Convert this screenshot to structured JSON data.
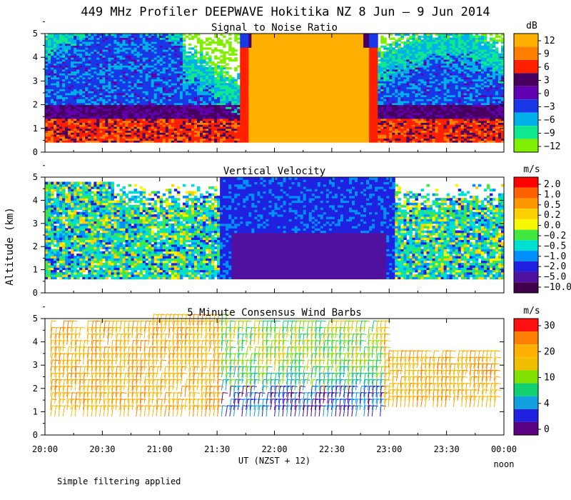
{
  "title": "449 MHz Profiler DEEPWAVE Hokitika NZ  8 Jun –  9 Jun 2014",
  "footnote": "Simple filtering applied",
  "chart_data": [
    {
      "type": "heatmap",
      "title": "Signal to Noise Ratio",
      "xlabel": "UT  (NZST + 12)",
      "ylabel": "Altitude (km)",
      "ylim": [
        0,
        5
      ],
      "yticks": [
        "0",
        "1",
        "2",
        "3",
        "4",
        "5"
      ],
      "xticks": [
        "20:00",
        "20:30",
        "21:00",
        "21:30",
        "22:00",
        "22:30",
        "23:00",
        "23:30",
        "00:00"
      ],
      "x_note": "noon",
      "colorbar": {
        "unit": "dB",
        "labels": [
          "12",
          "9",
          "6",
          "3",
          "0",
          "−3",
          "−6",
          "−9",
          "−12"
        ],
        "colors": [
          "#ffb000",
          "#ff8000",
          "#ff2000",
          "#480060",
          "#6000b0",
          "#1838e8",
          "#00b0e8",
          "#10e890",
          "#80f000"
        ]
      },
      "summary": "Low-level echo layer 0.5–2 km with strong returns (12 dB) filling 0.5–5 km between about 21:40 and 22:50 UT"
    },
    {
      "type": "heatmap",
      "title": "Vertical Velocity",
      "ylabel": "Altitude (km)",
      "ylim": [
        0,
        5
      ],
      "yticks": [
        "0",
        "1",
        "2",
        "3",
        "4",
        "5"
      ],
      "colorbar": {
        "unit": "m/s",
        "labels": [
          "2.0",
          "1.0",
          "0.5",
          "0.2",
          "0.0",
          "−0.2",
          "−0.5",
          "−1.0",
          "−2.0",
          "−5.0",
          "−10.0"
        ],
        "colors": [
          "#ff0000",
          "#ff6000",
          "#ff9800",
          "#ffd000",
          "#f8f800",
          "#40e840",
          "#00e0d0",
          "#0090ff",
          "#2020e0",
          "#5010a0",
          "#40004a"
        ]
      },
      "summary": "Mostly near zero to slightly negative, with strong downward velocity (−2 to −10 m/s) from about 21:30 to 23:00 UT"
    },
    {
      "type": "scatter",
      "title": "5 Minute Consensus Wind Barbs",
      "ylim": [
        0,
        5
      ],
      "yticks": [
        "0",
        "1",
        "2",
        "3",
        "4",
        "5"
      ],
      "colorbar": {
        "unit": "m/s",
        "labels": [
          "30",
          "20",
          "10",
          "4",
          "0"
        ],
        "colors": [
          "#ff1010",
          "#ff8000",
          "#ffb000",
          "#f0c000",
          "#80e000",
          "#10d070",
          "#10a0e0",
          "#2020e0",
          "#5a0080"
        ]
      },
      "summary": "Wind barbs every 5 minutes from 0.5 to 5 km; mostly 20–30 m/s (orange), weaker 4–15 m/s winds around 21:40–23:00 UT"
    }
  ]
}
